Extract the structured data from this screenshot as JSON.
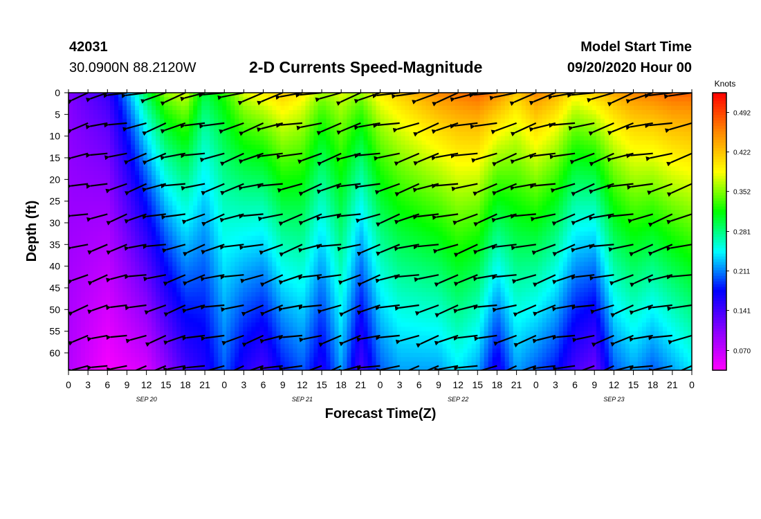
{
  "header": {
    "station_id": "42031",
    "coords": "30.0900N 88.2120W",
    "title": "2-D Currents Speed-Magnitude",
    "start_label": "Model Start Time",
    "start_value": "09/20/2020 Hour 00"
  },
  "chart_data": {
    "type": "heatmap",
    "title": "2-D Currents Speed-Magnitude",
    "xlabel": "Forecast Time(Z)",
    "ylabel": "Depth (ft)",
    "colorbar_label": "Knots",
    "colorbar_ticks": [
      "0.070",
      "0.141",
      "0.211",
      "0.281",
      "0.352",
      "0.422",
      "0.492"
    ],
    "colorbar_range": [
      0.035,
      0.527
    ],
    "colormap": [
      "#ff00ff",
      "#8800ff",
      "#0000ff",
      "#00ffff",
      "#00ff00",
      "#ffff00",
      "#ff8800",
      "#ff0000"
    ],
    "x_range_hours": [
      0,
      96
    ],
    "x_tick_labels": [
      "0",
      "3",
      "6",
      "9",
      "12",
      "15",
      "18",
      "21",
      "0",
      "3",
      "6",
      "9",
      "12",
      "15",
      "18",
      "21",
      "0",
      "3",
      "6",
      "9",
      "12",
      "15",
      "18",
      "21",
      "0",
      "3",
      "6",
      "9",
      "12",
      "15",
      "18",
      "21",
      "0"
    ],
    "date_labels": [
      "SEP 20",
      "SEP 21",
      "SEP 22",
      "SEP 23"
    ],
    "y_range": [
      0,
      64
    ],
    "y_reversed": true,
    "y_ticks": [
      0,
      5,
      10,
      15,
      20,
      25,
      30,
      35,
      40,
      45,
      50,
      55,
      60
    ],
    "surface_speed_knots": [
      0.11,
      0.13,
      0.15,
      0.22,
      0.3,
      0.36,
      0.38,
      0.3,
      0.33,
      0.38,
      0.4,
      0.42,
      0.4,
      0.36,
      0.38,
      0.36,
      0.4,
      0.42,
      0.44,
      0.46,
      0.47,
      0.48,
      0.46,
      0.42,
      0.46,
      0.44,
      0.4,
      0.42,
      0.44,
      0.46,
      0.47,
      0.48,
      0.48
    ],
    "bottom_speed_knots": [
      0.08,
      0.06,
      0.04,
      0.05,
      0.06,
      0.1,
      0.14,
      0.16,
      0.2,
      0.16,
      0.14,
      0.18,
      0.2,
      0.16,
      0.22,
      0.14,
      0.2,
      0.22,
      0.22,
      0.22,
      0.24,
      0.22,
      0.16,
      0.22,
      0.2,
      0.18,
      0.14,
      0.12,
      0.2,
      0.22,
      0.2,
      0.22,
      0.24
    ]
  }
}
